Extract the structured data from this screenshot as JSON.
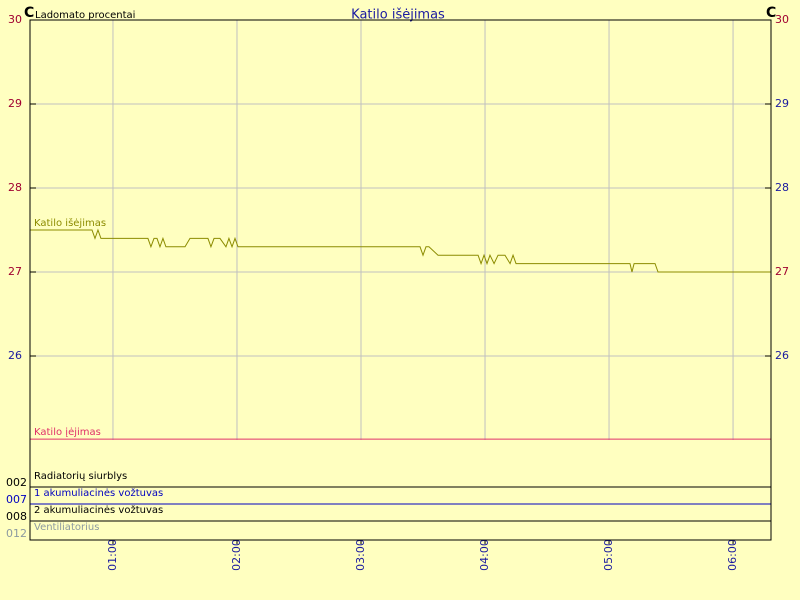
{
  "chart_data": {
    "type": "line",
    "title": "Katilo išėjimas",
    "left_unit": "C",
    "left_caption": "Ladomato procentai",
    "right_unit": "C",
    "xlim": [
      0.331,
      6.306
    ],
    "xticks": [
      {
        "value": 1,
        "label": "01:00"
      },
      {
        "value": 2,
        "label": "02:00"
      },
      {
        "value": 3,
        "label": "03:00"
      },
      {
        "value": 4,
        "label": "04:00"
      },
      {
        "value": 5,
        "label": "05:00"
      },
      {
        "value": 6,
        "label": "06:00"
      }
    ],
    "ylim": [
      25,
      30
    ],
    "yticks": [
      26,
      27,
      28,
      29,
      30
    ],
    "y2lim": [
      25,
      30
    ],
    "y2ticks": [
      26,
      27,
      28,
      29,
      30
    ],
    "grid": true,
    "series": [
      {
        "name": "Katilo išėjimas",
        "color": "#8c8c00",
        "x": [
          0.331,
          0.831,
          0.855,
          0.879,
          0.903,
          1.282,
          1.306,
          1.331,
          1.355,
          1.379,
          1.403,
          1.427,
          1.452,
          1.581,
          1.621,
          1.766,
          1.79,
          1.815,
          1.863,
          1.911,
          1.935,
          1.96,
          1.984,
          2.008,
          3.476,
          3.5,
          3.524,
          3.548,
          3.621,
          3.645,
          3.944,
          3.968,
          3.992,
          4.016,
          4.04,
          4.073,
          4.105,
          4.161,
          4.202,
          4.226,
          4.25,
          5.169,
          5.185,
          5.202,
          5.371,
          5.395,
          6.306
        ],
        "values": [
          27.5,
          27.5,
          27.4,
          27.5,
          27.4,
          27.4,
          27.3,
          27.4,
          27.4,
          27.3,
          27.4,
          27.3,
          27.3,
          27.3,
          27.4,
          27.4,
          27.3,
          27.4,
          27.4,
          27.3,
          27.4,
          27.3,
          27.4,
          27.3,
          27.3,
          27.2,
          27.3,
          27.3,
          27.2,
          27.2,
          27.2,
          27.1,
          27.2,
          27.1,
          27.2,
          27.1,
          27.2,
          27.2,
          27.1,
          27.2,
          27.1,
          27.1,
          27.0,
          27.1,
          27.1,
          27.0,
          27.0
        ]
      },
      {
        "name": "Katilo įėjimas",
        "color": "#e0306a",
        "x": [
          0.331,
          6.306
        ],
        "values": [
          25.01,
          25.01
        ]
      }
    ],
    "digital_channels": [
      {
        "code": "002",
        "name": "Radiatorių siurblys",
        "color": "#000000"
      },
      {
        "code": "007",
        "name": "1 akumuliacinės vožtuvas",
        "color": "#0000c0"
      },
      {
        "code": "008",
        "name": "2 akumuliacinės vožtuvas",
        "color": "#000000"
      },
      {
        "code": "012",
        "name": "Ventiliatorius",
        "color": "#8c9aa0"
      }
    ]
  }
}
